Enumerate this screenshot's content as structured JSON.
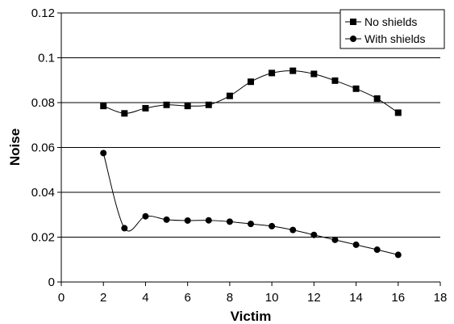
{
  "chart_data": {
    "type": "line",
    "title": "",
    "xlabel": "Victim",
    "ylabel": "Noise",
    "xlim": [
      0,
      18
    ],
    "ylim": [
      0,
      0.12
    ],
    "x_ticks": [
      "0",
      "2",
      "4",
      "6",
      "8",
      "10",
      "12",
      "14",
      "16",
      "18"
    ],
    "y_ticks": [
      "0",
      "0.02",
      "0.04",
      "0.06",
      "0.08",
      "0.1",
      "0.12"
    ],
    "grid": "horizontal",
    "legend_position": "top-right",
    "series": [
      {
        "name": "No shields",
        "marker": "square",
        "x": [
          2,
          3,
          4,
          5,
          6,
          7,
          8,
          9,
          10,
          11,
          12,
          13,
          14,
          15,
          16
        ],
        "y": [
          0.0785,
          0.0752,
          0.0775,
          0.079,
          0.0785,
          0.079,
          0.083,
          0.0893,
          0.0932,
          0.0942,
          0.0928,
          0.0898,
          0.0862,
          0.0818,
          0.0755
        ]
      },
      {
        "name": "With shields",
        "marker": "circle",
        "x": [
          2,
          3,
          4,
          5,
          6,
          7,
          8,
          9,
          10,
          11,
          12,
          13,
          14,
          15,
          16
        ],
        "y": [
          0.0575,
          0.024,
          0.0293,
          0.0278,
          0.0274,
          0.0275,
          0.0269,
          0.0259,
          0.0249,
          0.0232,
          0.021,
          0.0188,
          0.0166,
          0.0144,
          0.0121
        ]
      }
    ]
  }
}
